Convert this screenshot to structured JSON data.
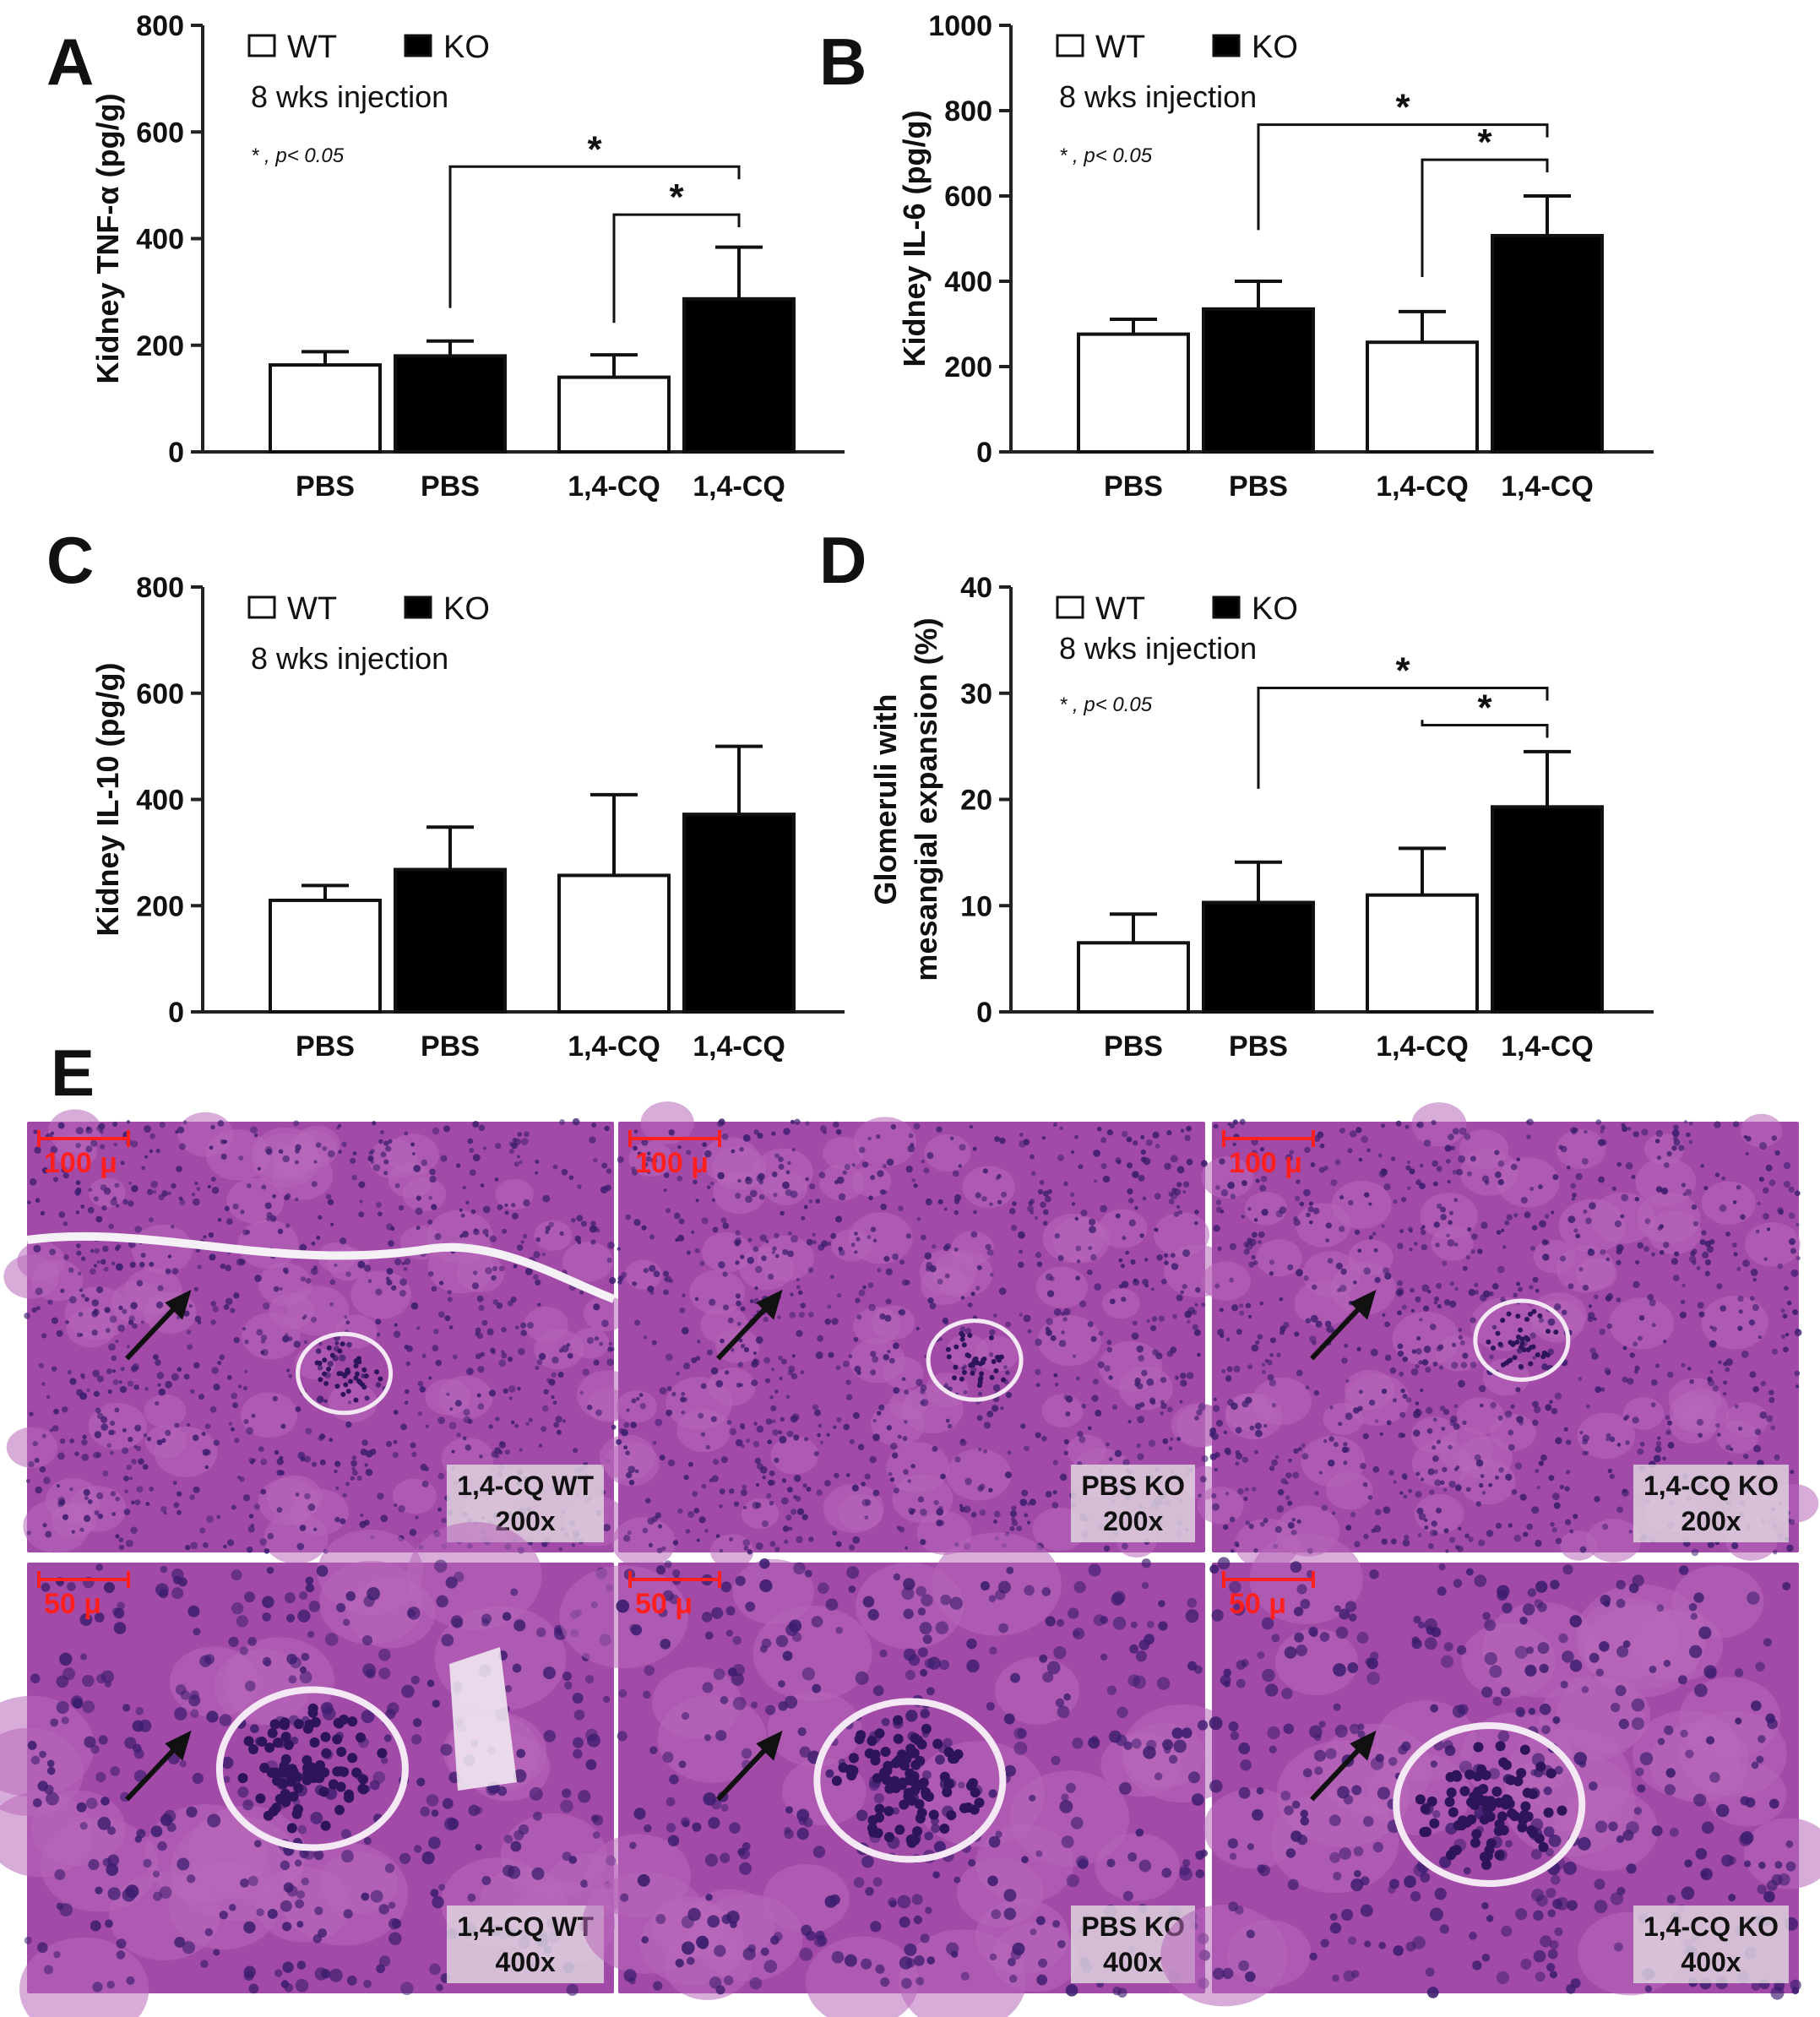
{
  "chart_data": [
    {
      "panel": "A",
      "type": "bar",
      "categories": [
        "PBS",
        "PBS",
        "1,4-CQ",
        "1,4-CQ"
      ],
      "groups": [
        "WT",
        "KO",
        "WT",
        "KO"
      ],
      "values": [
        163,
        180,
        140,
        287
      ],
      "errors": [
        25,
        28,
        42,
        97
      ],
      "ylabel": "Kidney TNF-α (pg/g)",
      "ylim": [
        0,
        800
      ],
      "yticks": [
        0,
        200,
        400,
        600,
        800
      ],
      "legend": [
        "WT",
        "KO"
      ],
      "annotation": "8 wks injection",
      "sig_note": "* , p< 0.05",
      "brackets": [
        {
          "from": 1,
          "to": 3,
          "start_value": 270,
          "level": 535,
          "label": "*"
        },
        {
          "from": 2,
          "to": 3,
          "start_value": 242,
          "level": 445,
          "label": "*"
        }
      ]
    },
    {
      "panel": "B",
      "type": "bar",
      "categories": [
        "PBS",
        "PBS",
        "1,4-CQ",
        "1,4-CQ"
      ],
      "groups": [
        "WT",
        "KO",
        "WT",
        "KO"
      ],
      "values": [
        276,
        335,
        257,
        507
      ],
      "errors": [
        35,
        65,
        72,
        93
      ],
      "ylabel": "Kidney IL-6 (pg/g)",
      "ylim": [
        0,
        1000
      ],
      "yticks": [
        0,
        200,
        400,
        600,
        800,
        1000
      ],
      "legend": [
        "WT",
        "KO"
      ],
      "annotation": "8 wks injection",
      "sig_note": "* , p< 0.05",
      "brackets": [
        {
          "from": 1,
          "to": 3,
          "start_value": 520,
          "level": 767,
          "label": "*"
        },
        {
          "from": 2,
          "to": 3,
          "start_value": 410,
          "level": 685,
          "label": "*"
        }
      ]
    },
    {
      "panel": "C",
      "type": "bar",
      "categories": [
        "PBS",
        "PBS",
        "1,4-CQ",
        "1,4-CQ"
      ],
      "groups": [
        "WT",
        "KO",
        "WT",
        "KO"
      ],
      "values": [
        210,
        268,
        257,
        372
      ],
      "errors": [
        28,
        80,
        152,
        128
      ],
      "ylabel": "Kidney IL-10 (pg/g)",
      "ylim": [
        0,
        800
      ],
      "yticks": [
        0,
        200,
        400,
        600,
        800
      ],
      "legend": [
        "WT",
        "KO"
      ],
      "annotation": "8 wks injection",
      "sig_note": "",
      "brackets": []
    },
    {
      "panel": "D",
      "type": "bar",
      "categories": [
        "PBS",
        "PBS",
        "1,4-CQ",
        "1,4-CQ"
      ],
      "groups": [
        "WT",
        "KO",
        "WT",
        "KO"
      ],
      "values": [
        6.5,
        10.3,
        11.0,
        19.3
      ],
      "errors": [
        2.7,
        3.8,
        4.4,
        5.2
      ],
      "ylabel": "Glomeruli with mesangial expansion (%)",
      "ylabel_lines": [
        "Glomeruli with",
        "mesangial expansion (%)"
      ],
      "ylim": [
        0,
        40
      ],
      "yticks": [
        0,
        10,
        20,
        30,
        40
      ],
      "legend": [
        "WT",
        "KO"
      ],
      "annotation": "8 wks injection",
      "sig_note": "* , p< 0.05",
      "brackets": [
        {
          "from": 1,
          "to": 3,
          "start_value": 21.0,
          "level": 30.5,
          "label": "*"
        },
        {
          "from": 2,
          "to": 3,
          "start_value": 27.5,
          "level": 27.0,
          "label": "*"
        }
      ]
    }
  ],
  "panel_e": {
    "label": "E",
    "images": [
      {
        "name": "1,4-CQ WT",
        "mag": "200x",
        "scale": "100 μ"
      },
      {
        "name": "PBS KO",
        "mag": "200x",
        "scale": "100 μ"
      },
      {
        "name": "1,4-CQ KO",
        "mag": "200x",
        "scale": "100 μ"
      },
      {
        "name": "1,4-CQ WT",
        "mag": "400x",
        "scale": "50 μ"
      },
      {
        "name": "PBS KO",
        "mag": "400x",
        "scale": "50 μ"
      },
      {
        "name": "1,4-CQ KO",
        "mag": "400x",
        "scale": "50 μ"
      }
    ]
  },
  "colors": {
    "ko_bar": "#000000",
    "wt_bar": "#ffffff",
    "tissue_base": "#a24aa8",
    "scale_bar": "#ff1f1f"
  }
}
